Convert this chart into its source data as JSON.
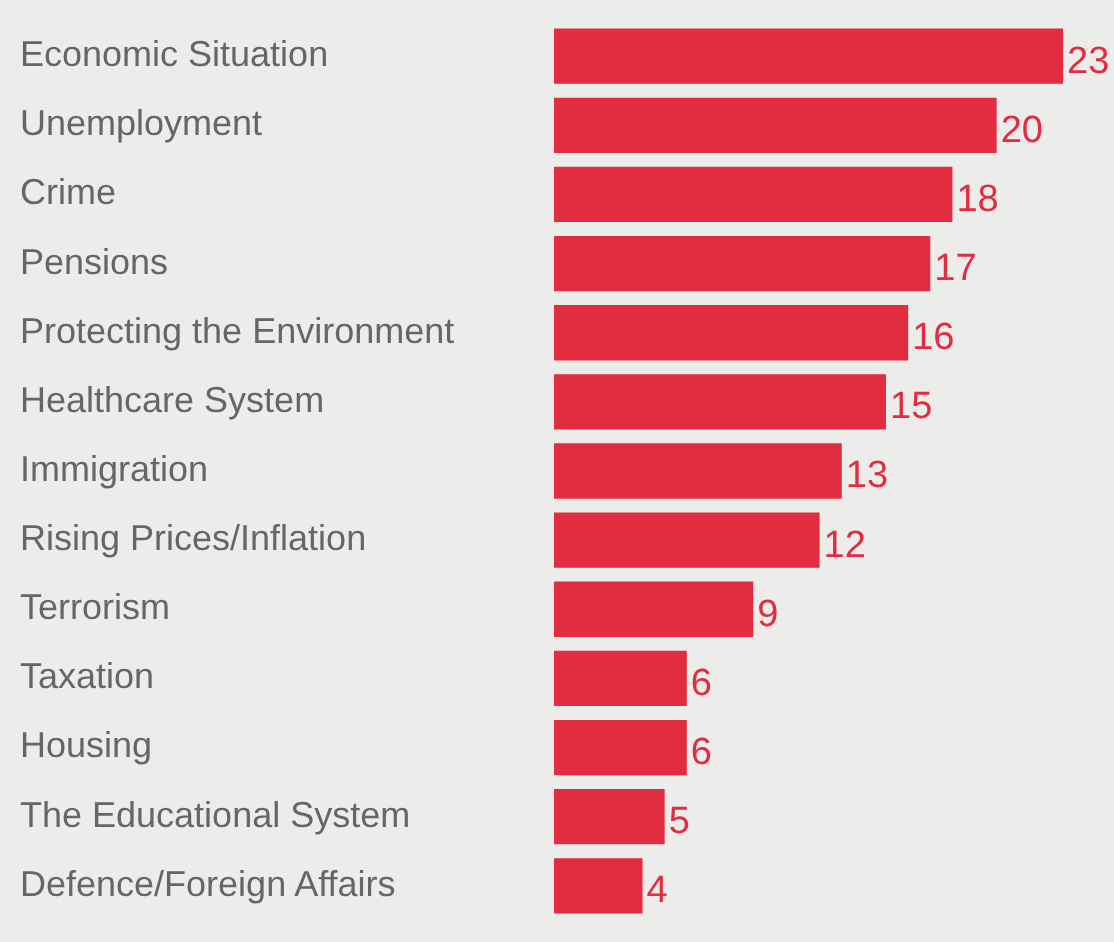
{
  "chart_data": {
    "type": "bar",
    "orientation": "horizontal",
    "categories": [
      "Economic Situation",
      "Unemployment",
      "Crime",
      "Pensions",
      "Protecting the Environment",
      "Healthcare System",
      "Immigration",
      "Rising Prices/Inflation",
      "Terrorism",
      "Taxation",
      "Housing",
      "The Educational System",
      "Defence/Foreign Affairs"
    ],
    "values": [
      23,
      20,
      18,
      17,
      16,
      15,
      13,
      12,
      9,
      6,
      6,
      5,
      4
    ],
    "color": "#e22c3f",
    "data_labels": true,
    "legend": false
  }
}
